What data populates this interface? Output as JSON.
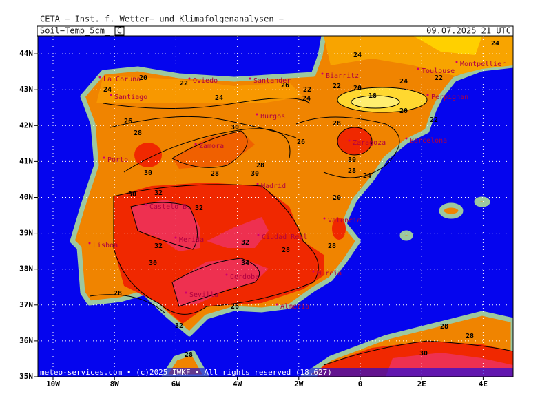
{
  "header": {
    "title": "CETA − Inst. f. Wetter− und Klimafolgenanalysen −",
    "field": "Soil−Temp_5cm_",
    "unit": "C",
    "valid_time": "09.07.2025 21 UTC"
  },
  "map": {
    "lat_ticks": [
      {
        "value": 44,
        "label": "44N"
      },
      {
        "value": 43,
        "label": "43N"
      },
      {
        "value": 42,
        "label": "42N"
      },
      {
        "value": 41,
        "label": "41N"
      },
      {
        "value": 40,
        "label": "40N"
      },
      {
        "value": 39,
        "label": "39N"
      },
      {
        "value": 38,
        "label": "38N"
      },
      {
        "value": 37,
        "label": "37N"
      },
      {
        "value": 36,
        "label": "36N"
      },
      {
        "value": 35,
        "label": "35N"
      }
    ],
    "lon_ticks": [
      {
        "value": -10,
        "label": "10W"
      },
      {
        "value": -8,
        "label": "8W"
      },
      {
        "value": -6,
        "label": "6W"
      },
      {
        "value": -4,
        "label": "4W"
      },
      {
        "value": -2,
        "label": "2W"
      },
      0,
      {
        "value": 2,
        "label": "2E"
      },
      {
        "value": 4,
        "label": "4E"
      }
    ],
    "cities": [
      "La Coruna",
      "Oviedo",
      "Santander",
      "Biarritz",
      "Toulouse",
      "Montpellier",
      "Santiago",
      "Perpignan",
      "Burgos",
      "Zaragoza",
      "Barcelona",
      "Zamora",
      "Porto",
      "Madrid",
      "Castelo B.",
      "Valencia",
      "Merida",
      "Ciudad Real",
      "Lisboa",
      "Cordoba",
      "Sevilla",
      "Murcia",
      "Almeria"
    ],
    "contour_labels": [
      24,
      24,
      22,
      24,
      22,
      22,
      20,
      18,
      20,
      22,
      24,
      26,
      24,
      22,
      20,
      24,
      26,
      28,
      30,
      26,
      28,
      30,
      28,
      24,
      20,
      28,
      30,
      28,
      30,
      30,
      32,
      32,
      32,
      30,
      32,
      34,
      28,
      28,
      28,
      26,
      32,
      28,
      30,
      28,
      28
    ],
    "footer": "meteo-services.com • (c)2025 IWKF • All rights reserved (18.627)"
  }
}
